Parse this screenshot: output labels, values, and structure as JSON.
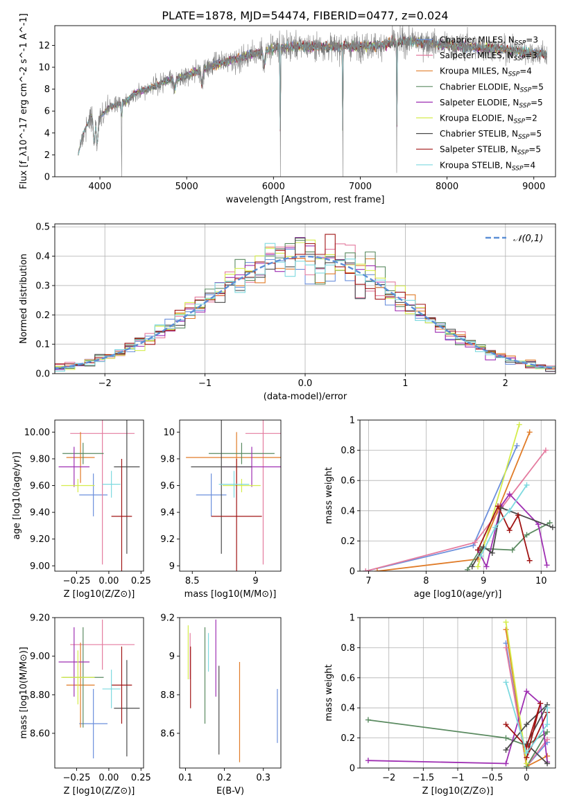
{
  "figure": {
    "title": "PLATE=1878, MJD=54474, FIBERID=0477, z=0.024"
  },
  "models": [
    {
      "label": "Chabrier MILES, N$_{SSP}$=3",
      "label_main": "Chabrier MILES, N",
      "label_sub": "SSP",
      "label_tail": "=3",
      "color": "#6b8fdc"
    },
    {
      "label": "Salpeter MILES, N$_{SSP}$=3",
      "label_main": "Salpeter MILES, N",
      "label_sub": "SSP",
      "label_tail": "=3",
      "color": "#e47b9f"
    },
    {
      "label": "Kroupa MILES, N$_{SSP}$=4",
      "label_main": "Kroupa MILES, N",
      "label_sub": "SSP",
      "label_tail": "=4",
      "color": "#e07b27"
    },
    {
      "label": "Chabrier ELODIE, N$_{SSP}$=5",
      "label_main": "Chabrier ELODIE, N",
      "label_sub": "SSP",
      "label_tail": "=5",
      "color": "#5a8a60"
    },
    {
      "label": "Salpeter ELODIE, N$_{SSP}$=5",
      "label_main": "Salpeter ELODIE, N",
      "label_sub": "SSP",
      "label_tail": "=5",
      "color": "#9e2eb2"
    },
    {
      "label": "Kroupa ELODIE, N$_{SSP}$=2",
      "label_main": "Kroupa ELODIE, N",
      "label_sub": "SSP",
      "label_tail": "=2",
      "color": "#d4ec4a"
    },
    {
      "label": "Chabrier STELIB, N$_{SSP}$=5",
      "label_main": "Chabrier STELIB, N",
      "label_sub": "SSP",
      "label_tail": "=5",
      "color": "#4a4a4a"
    },
    {
      "label": "Salpeter STELIB, N$_{SSP}$=5",
      "label_main": "Salpeter STELIB, N",
      "label_sub": "SSP",
      "label_tail": "=5",
      "color": "#a01414"
    },
    {
      "label": "Kroupa STELIB, N$_{SSP}$=4",
      "label_main": "Kroupa STELIB, N",
      "label_sub": "SSP",
      "label_tail": "=4",
      "color": "#7dd9df"
    }
  ],
  "chart_data": [
    {
      "id": "spectrum",
      "type": "line",
      "xlabel": "wavelength [Angstrom, rest frame]",
      "ylabel": "Flux [f_λ10^-17 erg cm^-2 s^-1 A^-1]",
      "xlim": [
        3480,
        9250
      ],
      "ylim": [
        0,
        13.8
      ],
      "xticks": [
        4000,
        5000,
        6000,
        7000,
        8000,
        9000
      ],
      "yticks": [
        0,
        2,
        4,
        6,
        8,
        10,
        12
      ],
      "data_color": "#808080",
      "continuum": {
        "x": [
          3750,
          3800,
          3900,
          4000,
          4100,
          4200,
          4300,
          4400,
          4500,
          4600,
          4700,
          4800,
          4900,
          5000,
          5200,
          5400,
          5600,
          5800,
          6000,
          6200,
          6400,
          6600,
          6800,
          7000,
          7200,
          7400,
          7600,
          7800,
          8000,
          8200,
          8400,
          8600,
          8800,
          9000,
          9150
        ],
        "y": [
          2.0,
          3.8,
          5.6,
          5.4,
          6.3,
          6.6,
          6.9,
          7.6,
          7.9,
          8.2,
          8.5,
          8.9,
          9.0,
          9.3,
          9.8,
          10.4,
          10.8,
          11.3,
          11.7,
          11.9,
          11.9,
          11.9,
          11.9,
          11.9,
          12.0,
          12.3,
          12.4,
          12.2,
          12.0,
          11.9,
          11.8,
          11.7,
          11.5,
          11.3,
          11.2
        ]
      },
      "absorption_lines": [
        {
          "x": 3934,
          "depth": 0.45
        },
        {
          "x": 3969,
          "depth": 0.45
        },
        {
          "x": 4250,
          "depth": 1.0
        },
        {
          "x": 4861,
          "depth": 0.12
        },
        {
          "x": 5175,
          "depth": 0.15
        },
        {
          "x": 5893,
          "depth": 0.12
        },
        {
          "x": 6080,
          "depth": 1.0
        },
        {
          "x": 6800,
          "depth": 1.0
        },
        {
          "x": 7420,
          "depth": 0.97
        }
      ]
    },
    {
      "id": "residuals",
      "type": "histogram",
      "xlabel": "(data-model)/error",
      "ylabel": "Normed distribution",
      "xlim": [
        -2.5,
        2.5
      ],
      "ylim": [
        0,
        0.51
      ],
      "xticks": [
        -2,
        -1,
        0,
        1,
        2
      ],
      "yticks": [
        0.0,
        0.1,
        0.2,
        0.3,
        0.4,
        0.5
      ],
      "bin_width": 0.1,
      "reference": {
        "name": "𝒩(0,1)",
        "color": "#5b8fd6",
        "mean": 0,
        "sigma": 1
      }
    },
    {
      "id": "age_vs_Z",
      "type": "errorbar",
      "xlabel": "Z [log10(Z/Z⊙)]",
      "ylabel": "age [log10(age/yr)]",
      "xlim": [
        -0.42,
        0.27
      ],
      "ylim": [
        8.96,
        10.09
      ],
      "xticks": [
        -0.25,
        0.0,
        0.25
      ],
      "yticks": [
        9.0,
        9.2,
        9.4,
        9.6,
        9.8,
        10.0
      ],
      "points": [
        {
          "x": -0.12,
          "xerr": 0.11,
          "y": 9.53,
          "yerr": 0.16,
          "model": 0
        },
        {
          "x": -0.05,
          "xerr": 0.25,
          "y": 9.99,
          "yerr": 0.98,
          "model": 1
        },
        {
          "x": -0.22,
          "xerr": 0.11,
          "y": 9.81,
          "yerr": 0.19,
          "model": 2
        },
        {
          "x": -0.2,
          "xerr": 0.16,
          "y": 9.84,
          "yerr": 0.08,
          "model": 3
        },
        {
          "x": -0.27,
          "xerr": 0.12,
          "y": 9.74,
          "yerr": 0.15,
          "model": 4
        },
        {
          "x": -0.24,
          "xerr": 0.13,
          "y": 9.6,
          "yerr": 0.05,
          "model": 5
        },
        {
          "x": 0.14,
          "xerr": 0.1,
          "y": 9.74,
          "yerr": 0.65,
          "model": 6
        },
        {
          "x": 0.1,
          "xerr": 0.08,
          "y": 9.37,
          "yerr": 0.43,
          "model": 7
        },
        {
          "x": 0.02,
          "xerr": 0.07,
          "y": 9.61,
          "yerr": 0.1,
          "model": 8
        }
      ]
    },
    {
      "id": "age_vs_mass",
      "type": "errorbar",
      "xlabel": "mass [log10(M/M⊙)]",
      "ylabel": "",
      "xlim": [
        8.4,
        9.2
      ],
      "ylim": [
        8.96,
        10.09
      ],
      "xticks": [
        8.5,
        9.0
      ],
      "yticks": [
        9.0,
        9.2,
        9.4,
        9.6,
        9.8,
        10.0
      ],
      "points": [
        {
          "x": 8.65,
          "xerr": 0.12,
          "y": 9.53,
          "yerr": 0.16,
          "model": 0
        },
        {
          "x": 9.06,
          "xerr": 0.14,
          "y": 9.99,
          "yerr": 0.98,
          "model": 1
        },
        {
          "x": 8.85,
          "xerr": 0.4,
          "y": 9.81,
          "yerr": 0.19,
          "model": 2
        },
        {
          "x": 8.89,
          "xerr": 0.26,
          "y": 9.84,
          "yerr": 0.08,
          "model": 3
        },
        {
          "x": 8.97,
          "xerr": 0.24,
          "y": 9.74,
          "yerr": 0.15,
          "model": 4
        },
        {
          "x": 8.89,
          "xerr": 0.15,
          "y": 9.6,
          "yerr": 0.05,
          "model": 5
        },
        {
          "x": 8.73,
          "xerr": 0.24,
          "y": 9.74,
          "yerr": 0.65,
          "model": 6
        },
        {
          "x": 8.85,
          "xerr": 0.2,
          "y": 9.37,
          "yerr": 0.43,
          "model": 7
        },
        {
          "x": 8.83,
          "xerr": 0.12,
          "y": 9.61,
          "yerr": 0.1,
          "model": 8
        }
      ]
    },
    {
      "id": "weight_vs_age",
      "type": "line",
      "xlabel": "age [log10(age/yr)]",
      "ylabel": "mass weight",
      "xlim": [
        6.85,
        10.25
      ],
      "ylim": [
        0,
        1.0
      ],
      "xticks": [
        7,
        8,
        9,
        10
      ],
      "yticks": [
        0.0,
        0.2,
        0.4,
        0.6,
        0.8,
        1.0
      ],
      "series": [
        {
          "model": 0,
          "x": [
            6.95,
            8.82,
            9.58
          ],
          "y": [
            0.0,
            0.17,
            0.83
          ]
        },
        {
          "model": 1,
          "x": [
            6.95,
            8.85,
            10.08
          ],
          "y": [
            0.0,
            0.19,
            0.8
          ]
        },
        {
          "model": 2,
          "x": [
            7.15,
            8.9,
            9.8
          ],
          "y": [
            0.0,
            0.08,
            0.92
          ]
        },
        {
          "model": 3,
          "x": [
            8.72,
            8.95,
            9.5,
            9.75,
            10.15
          ],
          "y": [
            0.01,
            0.15,
            0.14,
            0.24,
            0.32
          ]
        },
        {
          "model": 4,
          "x": [
            8.9,
            9.05,
            9.3,
            9.45,
            9.95,
            10.1
          ],
          "y": [
            0.14,
            0.03,
            0.43,
            0.51,
            0.31,
            0.04
          ]
        },
        {
          "model": 5,
          "x": [
            8.9,
            9.62
          ],
          "y": [
            0.03,
            0.97
          ]
        },
        {
          "model": 6,
          "x": [
            8.8,
            9.0,
            9.15,
            9.3,
            10.2
          ],
          "y": [
            0.03,
            0.16,
            0.12,
            0.42,
            0.29
          ]
        },
        {
          "model": 7,
          "x": [
            8.9,
            9.25,
            9.45,
            9.6,
            9.8
          ],
          "y": [
            0.14,
            0.43,
            0.27,
            0.37,
            0.07
          ]
        },
        {
          "model": 8,
          "x": [
            8.95,
            9.2,
            9.45,
            9.75
          ],
          "y": [
            0.1,
            0.29,
            0.4,
            0.57
          ]
        }
      ]
    },
    {
      "id": "mass_vs_Z",
      "type": "errorbar",
      "xlabel": "Z [log10(Z/Z⊙)]",
      "ylabel": "mass [log10(M/M⊙)]",
      "xlim": [
        -0.42,
        0.27
      ],
      "ylim": [
        8.42,
        9.2
      ],
      "xticks": [
        -0.25,
        0.0,
        0.25
      ],
      "yticks": [
        8.6,
        8.8,
        9.0,
        9.2
      ],
      "points": [
        {
          "x": -0.12,
          "xerr": 0.11,
          "y": 8.65,
          "yerr": 0.18,
          "model": 0
        },
        {
          "x": -0.05,
          "xerr": 0.25,
          "y": 9.06,
          "yerr": 0.13,
          "model": 1
        },
        {
          "x": -0.22,
          "xerr": 0.11,
          "y": 8.85,
          "yerr": 0.22,
          "model": 2
        },
        {
          "x": -0.2,
          "xerr": 0.16,
          "y": 8.89,
          "yerr": 0.26,
          "model": 3
        },
        {
          "x": -0.27,
          "xerr": 0.12,
          "y": 8.97,
          "yerr": 0.18,
          "model": 4
        },
        {
          "x": -0.24,
          "xerr": 0.13,
          "y": 8.89,
          "yerr": 0.14,
          "model": 5
        },
        {
          "x": 0.14,
          "xerr": 0.1,
          "y": 8.73,
          "yerr": 0.25,
          "model": 6
        },
        {
          "x": 0.1,
          "xerr": 0.08,
          "y": 8.85,
          "yerr": 0.2,
          "model": 7
        },
        {
          "x": 0.02,
          "xerr": 0.07,
          "y": 8.83,
          "yerr": 0.1,
          "model": 8
        }
      ]
    },
    {
      "id": "mass_vs_ebv",
      "type": "errorbar",
      "xlabel": "E(B-V)",
      "ylabel": "",
      "xlim": [
        0.085,
        0.345
      ],
      "ylim": [
        8.42,
        9.2
      ],
      "xticks": [
        0.1,
        0.2,
        0.3
      ],
      "yticks": [
        8.6,
        8.8,
        9.0,
        9.2
      ],
      "points": [
        {
          "x": 0.336,
          "xerr": 0,
          "y": 8.69,
          "yerr": 0.14,
          "model": 0
        },
        {
          "x": 0.112,
          "xerr": 0,
          "y": 9.0,
          "yerr": 0.12,
          "model": 1
        },
        {
          "x": 0.239,
          "xerr": 0,
          "y": 8.71,
          "yerr": 0.26,
          "model": 2
        },
        {
          "x": 0.15,
          "xerr": 0,
          "y": 8.9,
          "yerr": 0.25,
          "model": 3
        },
        {
          "x": 0.178,
          "xerr": 0,
          "y": 8.99,
          "yerr": 0.2,
          "model": 4
        },
        {
          "x": 0.107,
          "xerr": 0,
          "y": 9.02,
          "yerr": 0.14,
          "model": 5
        },
        {
          "x": 0.186,
          "xerr": 0,
          "y": 8.72,
          "yerr": 0.23,
          "model": 6
        },
        {
          "x": 0.113,
          "xerr": 0,
          "y": 8.89,
          "yerr": 0.16,
          "model": 7
        },
        {
          "x": 0.159,
          "xerr": 0,
          "y": 9.02,
          "yerr": 0.1,
          "model": 8
        }
      ]
    },
    {
      "id": "weight_vs_Z",
      "type": "line",
      "xlabel": "Z [log10(Z/Z⊙)]",
      "ylabel": "mass weight",
      "xlim": [
        -2.42,
        0.42
      ],
      "ylim": [
        0,
        1.0
      ],
      "xticks": [
        -2.0,
        -1.5,
        -1.0,
        -0.5,
        0.0
      ],
      "yticks": [
        0.0,
        0.2,
        0.4,
        0.6,
        0.8,
        1.0
      ],
      "series": [
        {
          "model": 0,
          "x": [
            -0.3,
            0.0,
            0.3
          ],
          "y": [
            0.83,
            0.01,
            0.17
          ]
        },
        {
          "model": 1,
          "x": [
            -0.3,
            0.0,
            0.3
          ],
          "y": [
            0.8,
            0.01,
            0.19
          ]
        },
        {
          "model": 2,
          "x": [
            -0.3,
            0.0,
            0.3
          ],
          "y": [
            0.92,
            0.01,
            0.08
          ]
        },
        {
          "model": 3,
          "x": [
            -2.3,
            -0.3,
            0.0,
            0.3,
            0.0
          ],
          "y": [
            0.32,
            0.2,
            0.15,
            0.24,
            0.01
          ]
        },
        {
          "model": 4,
          "x": [
            -2.3,
            -0.3,
            0.0,
            0.2,
            0.3
          ],
          "y": [
            0.05,
            0.03,
            0.51,
            0.43,
            0.04
          ]
        },
        {
          "model": 5,
          "x": [
            -0.3,
            0.0
          ],
          "y": [
            0.97,
            0.03
          ]
        },
        {
          "model": 6,
          "x": [
            -0.3,
            0.0,
            0.3,
            0.0,
            0.3
          ],
          "y": [
            0.12,
            0.29,
            0.42,
            0.16,
            0.03
          ]
        },
        {
          "model": 7,
          "x": [
            -0.3,
            0.0,
            0.2,
            0.0,
            0.3
          ],
          "y": [
            0.29,
            0.14,
            0.43,
            0.07,
            0.37
          ]
        },
        {
          "model": 8,
          "x": [
            -0.3,
            0.0,
            0.3,
            0.3
          ],
          "y": [
            0.57,
            0.1,
            0.29,
            0.4
          ]
        }
      ]
    }
  ]
}
